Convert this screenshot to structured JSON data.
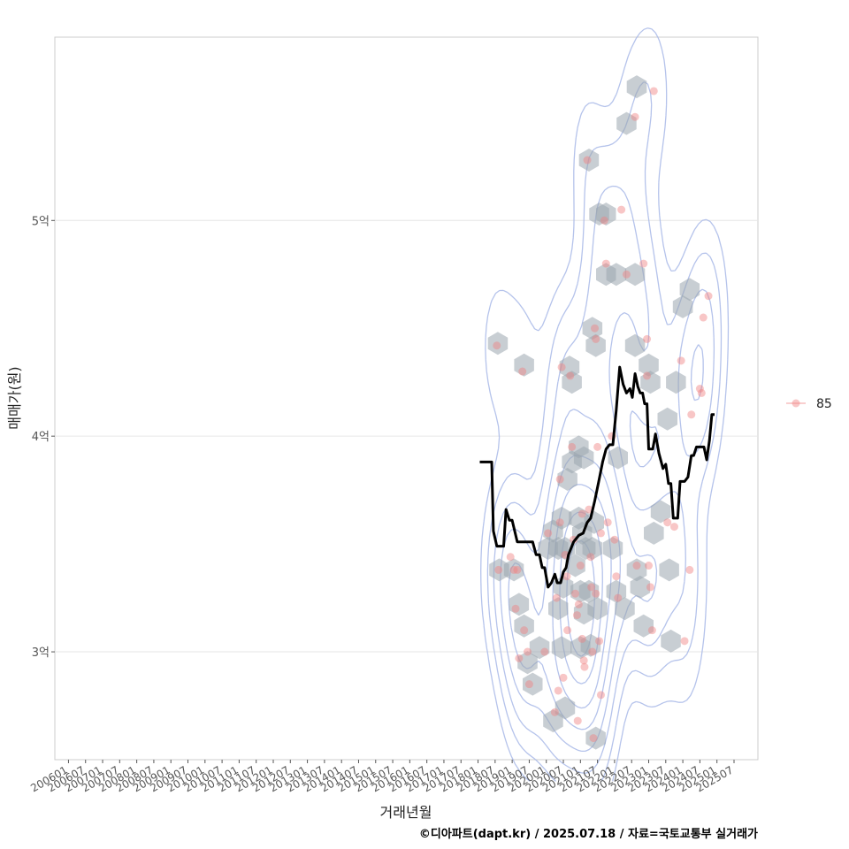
{
  "chart_data": {
    "type": "scatter",
    "ylabel": "매매가(원)",
    "xlabel": "거래년월",
    "caption": "©디아파트(dapt.kr) / 2025.07.18 / 자료=국토교통부 실거래가",
    "legend": {
      "label": "85",
      "position": "right"
    },
    "colors": {
      "points": "#f08080",
      "median_line": "#000000",
      "hex": "#9aa5ae",
      "contour": "#a8b8e8",
      "panel_border": "#cccccc",
      "grid": "#e6e6e6"
    },
    "y_axis": {
      "min": 2.5,
      "max": 5.85,
      "unit": "억",
      "ticks": [
        {
          "value": 3,
          "label": "3억"
        },
        {
          "value": 4,
          "label": "4억"
        },
        {
          "value": 5,
          "label": "5억"
        }
      ]
    },
    "x_axis": {
      "min": 2005.6,
      "max": 2026.2,
      "ticks": [
        {
          "value": 2006.0,
          "label": "200601"
        },
        {
          "value": 2006.5,
          "label": "200607"
        },
        {
          "value": 2007.0,
          "label": "200701"
        },
        {
          "value": 2007.5,
          "label": "200707"
        },
        {
          "value": 2008.0,
          "label": "200801"
        },
        {
          "value": 2008.5,
          "label": "200807"
        },
        {
          "value": 2009.0,
          "label": "200901"
        },
        {
          "value": 2009.5,
          "label": "200907"
        },
        {
          "value": 2010.0,
          "label": "201001"
        },
        {
          "value": 2010.5,
          "label": "201007"
        },
        {
          "value": 2011.0,
          "label": "201101"
        },
        {
          "value": 2011.5,
          "label": "201107"
        },
        {
          "value": 2012.0,
          "label": "201201"
        },
        {
          "value": 2012.5,
          "label": "201207"
        },
        {
          "value": 2013.0,
          "label": "201301"
        },
        {
          "value": 2013.5,
          "label": "201307"
        },
        {
          "value": 2014.0,
          "label": "201401"
        },
        {
          "value": 2014.5,
          "label": "201407"
        },
        {
          "value": 2015.0,
          "label": "201501"
        },
        {
          "value": 2015.5,
          "label": "201507"
        },
        {
          "value": 2016.0,
          "label": "201601"
        },
        {
          "value": 2016.5,
          "label": "201607"
        },
        {
          "value": 2017.0,
          "label": "201701"
        },
        {
          "value": 2017.5,
          "label": "201707"
        },
        {
          "value": 2018.0,
          "label": "201801"
        },
        {
          "value": 2018.5,
          "label": "201807"
        },
        {
          "value": 2019.0,
          "label": "201901"
        },
        {
          "value": 2019.5,
          "label": "201907"
        },
        {
          "value": 2020.0,
          "label": "202001"
        },
        {
          "value": 2020.5,
          "label": "202007"
        },
        {
          "value": 2021.0,
          "label": "202101"
        },
        {
          "value": 2021.5,
          "label": "202107"
        },
        {
          "value": 2022.0,
          "label": "202201"
        },
        {
          "value": 2022.5,
          "label": "202207"
        },
        {
          "value": 2023.0,
          "label": "202301"
        },
        {
          "value": 2023.5,
          "label": "202307"
        },
        {
          "value": 2024.0,
          "label": "202401"
        },
        {
          "value": 2024.5,
          "label": "202407"
        },
        {
          "value": 2025.0,
          "label": "202501"
        },
        {
          "value": 2025.5,
          "label": "202507"
        }
      ]
    },
    "median_line": [
      [
        2018.05,
        3.88
      ],
      [
        2018.4,
        3.88
      ],
      [
        2018.45,
        3.56
      ],
      [
        2018.55,
        3.49
      ],
      [
        2018.75,
        3.49
      ],
      [
        2018.82,
        3.66
      ],
      [
        2018.92,
        3.61
      ],
      [
        2019.0,
        3.61
      ],
      [
        2019.15,
        3.51
      ],
      [
        2019.6,
        3.51
      ],
      [
        2019.7,
        3.45
      ],
      [
        2019.8,
        3.45
      ],
      [
        2019.88,
        3.39
      ],
      [
        2019.95,
        3.39
      ],
      [
        2020.05,
        3.3
      ],
      [
        2020.15,
        3.32
      ],
      [
        2020.25,
        3.36
      ],
      [
        2020.32,
        3.32
      ],
      [
        2020.42,
        3.32
      ],
      [
        2020.5,
        3.37
      ],
      [
        2020.58,
        3.39
      ],
      [
        2020.65,
        3.45
      ],
      [
        2020.8,
        3.51
      ],
      [
        2020.95,
        3.54
      ],
      [
        2021.08,
        3.55
      ],
      [
        2021.2,
        3.6
      ],
      [
        2021.3,
        3.62
      ],
      [
        2021.42,
        3.7
      ],
      [
        2021.55,
        3.8
      ],
      [
        2021.65,
        3.88
      ],
      [
        2021.75,
        3.94
      ],
      [
        2021.85,
        3.96
      ],
      [
        2021.95,
        3.96
      ],
      [
        2022.05,
        4.12
      ],
      [
        2022.15,
        4.32
      ],
      [
        2022.25,
        4.24
      ],
      [
        2022.35,
        4.2
      ],
      [
        2022.45,
        4.22
      ],
      [
        2022.52,
        4.18
      ],
      [
        2022.6,
        4.29
      ],
      [
        2022.68,
        4.23
      ],
      [
        2022.75,
        4.2
      ],
      [
        2022.82,
        4.2
      ],
      [
        2022.88,
        4.15
      ],
      [
        2022.95,
        4.15
      ],
      [
        2023.0,
        3.94
      ],
      [
        2023.12,
        3.94
      ],
      [
        2023.2,
        4.01
      ],
      [
        2023.3,
        3.92
      ],
      [
        2023.42,
        3.85
      ],
      [
        2023.5,
        3.87
      ],
      [
        2023.58,
        3.78
      ],
      [
        2023.65,
        3.78
      ],
      [
        2023.72,
        3.62
      ],
      [
        2023.85,
        3.62
      ],
      [
        2023.92,
        3.79
      ],
      [
        2024.05,
        3.79
      ],
      [
        2024.15,
        3.81
      ],
      [
        2024.25,
        3.91
      ],
      [
        2024.32,
        3.91
      ],
      [
        2024.4,
        3.95
      ],
      [
        2024.62,
        3.95
      ],
      [
        2024.7,
        3.89
      ],
      [
        2024.78,
        3.98
      ],
      [
        2024.85,
        4.1
      ],
      [
        2024.93,
        4.1
      ]
    ],
    "transactions": [
      [
        2018.55,
        4.42
      ],
      [
        2018.6,
        3.38
      ],
      [
        2018.95,
        3.44
      ],
      [
        2019.05,
        3.38
      ],
      [
        2019.15,
        3.38
      ],
      [
        2019.1,
        3.2
      ],
      [
        2019.3,
        4.3
      ],
      [
        2019.35,
        3.1
      ],
      [
        2019.2,
        2.97
      ],
      [
        2019.5,
        2.85
      ],
      [
        2019.45,
        3.0
      ],
      [
        2019.95,
        3.0
      ],
      [
        2020.05,
        3.55
      ],
      [
        2020.25,
        2.72
      ],
      [
        2020.4,
        3.8
      ],
      [
        2020.4,
        3.6
      ],
      [
        2020.3,
        3.25
      ],
      [
        2020.35,
        2.82
      ],
      [
        2020.5,
        2.88
      ],
      [
        2020.55,
        3.45
      ],
      [
        2020.6,
        3.35
      ],
      [
        2020.62,
        3.1
      ],
      [
        2020.45,
        4.32
      ],
      [
        2020.7,
        4.28
      ],
      [
        2020.75,
        3.95
      ],
      [
        2020.8,
        3.52
      ],
      [
        2020.85,
        3.27
      ],
      [
        2020.9,
        3.17
      ],
      [
        2020.95,
        3.22
      ],
      [
        2021.0,
        3.4
      ],
      [
        2021.05,
        3.06
      ],
      [
        2021.1,
        2.96
      ],
      [
        2021.12,
        2.93
      ],
      [
        2021.05,
        3.64
      ],
      [
        2021.25,
        3.66
      ],
      [
        2021.3,
        3.44
      ],
      [
        2021.32,
        3.3
      ],
      [
        2021.35,
        3.0
      ],
      [
        2021.38,
        2.6
      ],
      [
        2021.45,
        4.45
      ],
      [
        2021.42,
        4.5
      ],
      [
        2021.5,
        3.95
      ],
      [
        2021.6,
        3.55
      ],
      [
        2021.45,
        3.27
      ],
      [
        2021.55,
        3.05
      ],
      [
        2021.6,
        2.8
      ],
      [
        2020.92,
        2.68
      ],
      [
        2021.2,
        5.28
      ],
      [
        2021.7,
        5.0
      ],
      [
        2021.75,
        4.8
      ],
      [
        2021.8,
        3.6
      ],
      [
        2021.92,
        4.0
      ],
      [
        2022.0,
        3.52
      ],
      [
        2022.05,
        3.35
      ],
      [
        2022.1,
        3.25
      ],
      [
        2022.2,
        5.05
      ],
      [
        2022.35,
        4.75
      ],
      [
        2022.6,
        5.48
      ],
      [
        2022.65,
        3.4
      ],
      [
        2022.85,
        4.8
      ],
      [
        2022.95,
        4.45
      ],
      [
        2022.95,
        4.28
      ],
      [
        2023.0,
        3.4
      ],
      [
        2023.05,
        3.3
      ],
      [
        2023.1,
        3.1
      ],
      [
        2023.15,
        5.6
      ],
      [
        2023.55,
        3.6
      ],
      [
        2023.75,
        3.58
      ],
      [
        2023.95,
        4.35
      ],
      [
        2024.05,
        3.05
      ],
      [
        2024.2,
        3.38
      ],
      [
        2024.25,
        4.1
      ],
      [
        2024.5,
        4.22
      ],
      [
        2024.6,
        4.55
      ],
      [
        2024.75,
        4.65
      ],
      [
        2024.55,
        4.2
      ]
    ],
    "hexbins": [
      [
        2018.58,
        4.43
      ],
      [
        2018.62,
        3.38
      ],
      [
        2019.05,
        3.38
      ],
      [
        2019.35,
        4.33
      ],
      [
        2019.2,
        3.22
      ],
      [
        2019.35,
        3.12
      ],
      [
        2019.45,
        2.95
      ],
      [
        2019.6,
        2.85
      ],
      [
        2019.8,
        3.02
      ],
      [
        2020.05,
        3.48
      ],
      [
        2020.2,
        3.56
      ],
      [
        2020.35,
        3.48
      ],
      [
        2020.45,
        3.62
      ],
      [
        2020.55,
        3.48
      ],
      [
        2020.5,
        3.3
      ],
      [
        2020.35,
        3.2
      ],
      [
        2020.45,
        3.02
      ],
      [
        2020.2,
        2.68
      ],
      [
        2020.55,
        2.74
      ],
      [
        2020.68,
        4.32
      ],
      [
        2020.75,
        4.25
      ],
      [
        2020.62,
        3.8
      ],
      [
        2020.75,
        3.88
      ],
      [
        2020.95,
        3.95
      ],
      [
        2021.1,
        3.9
      ],
      [
        2020.95,
        3.62
      ],
      [
        2020.85,
        3.4
      ],
      [
        2021.05,
        3.55
      ],
      [
        2021.15,
        3.48
      ],
      [
        2021.0,
        3.28
      ],
      [
        2021.1,
        3.18
      ],
      [
        2021.0,
        3.02
      ],
      [
        2021.3,
        3.03
      ],
      [
        2021.25,
        3.28
      ],
      [
        2021.35,
        3.48
      ],
      [
        2021.4,
        3.6
      ],
      [
        2021.5,
        3.2
      ],
      [
        2021.45,
        2.6
      ],
      [
        2021.35,
        4.5
      ],
      [
        2021.45,
        4.42
      ],
      [
        2021.25,
        5.28
      ],
      [
        2021.55,
        5.03
      ],
      [
        2021.75,
        5.03
      ],
      [
        2021.75,
        4.75
      ],
      [
        2022.05,
        4.75
      ],
      [
        2022.35,
        5.45
      ],
      [
        2022.6,
        4.75
      ],
      [
        2022.6,
        4.42
      ],
      [
        2022.65,
        3.38
      ],
      [
        2022.75,
        3.3
      ],
      [
        2022.85,
        3.12
      ],
      [
        2022.65,
        5.62
      ],
      [
        2023.0,
        4.33
      ],
      [
        2023.05,
        4.25
      ],
      [
        2023.15,
        3.55
      ],
      [
        2023.35,
        3.65
      ],
      [
        2023.6,
        3.38
      ],
      [
        2023.65,
        3.05
      ],
      [
        2023.55,
        4.08
      ],
      [
        2023.8,
        4.25
      ],
      [
        2024.0,
        4.6
      ],
      [
        2024.2,
        4.68
      ],
      [
        2022.1,
        3.9
      ],
      [
        2021.95,
        3.48
      ],
      [
        2022.05,
        3.28
      ],
      [
        2022.3,
        3.2
      ]
    ]
  }
}
